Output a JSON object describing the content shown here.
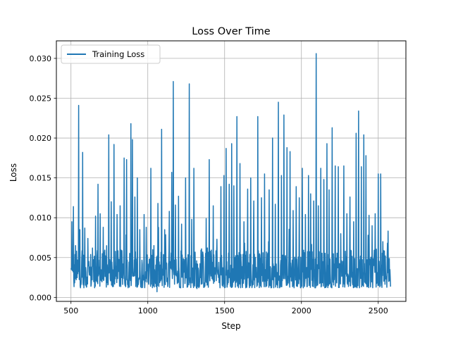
{
  "chart_data": {
    "type": "line",
    "title": "Loss Over Time",
    "xlabel": "Step",
    "ylabel": "Loss",
    "xlim": [
      405,
      2680
    ],
    "ylim": [
      -0.0005,
      0.0322
    ],
    "x_ticks": [
      500,
      1000,
      1500,
      2000,
      2500
    ],
    "x_tick_labels": [
      "500",
      "1000",
      "1500",
      "2000",
      "2500"
    ],
    "y_ticks": [
      0.0,
      0.005,
      0.01,
      0.015,
      0.02,
      0.025,
      0.03
    ],
    "y_tick_labels": [
      "0.000",
      "0.005",
      "0.010",
      "0.015",
      "0.020",
      "0.025",
      "0.030"
    ],
    "grid": true,
    "legend_position": "top-left",
    "series": [
      {
        "name": "Training Loss",
        "color": "#1f77b4",
        "x_range": [
          500,
          2580
        ],
        "baseline_range": [
          0.0012,
          0.006
        ],
        "peaks": [
          [
            505,
            0.0095
          ],
          [
            515,
            0.0114
          ],
          [
            530,
            0.0065
          ],
          [
            550,
            0.0241
          ],
          [
            558,
            0.0085
          ],
          [
            575,
            0.0182
          ],
          [
            590,
            0.0087
          ],
          [
            610,
            0.0074
          ],
          [
            640,
            0.0062
          ],
          [
            660,
            0.0102
          ],
          [
            675,
            0.0142
          ],
          [
            690,
            0.0105
          ],
          [
            710,
            0.0088
          ],
          [
            745,
            0.0204
          ],
          [
            762,
            0.012
          ],
          [
            780,
            0.0192
          ],
          [
            800,
            0.0104
          ],
          [
            820,
            0.0115
          ],
          [
            845,
            0.0175
          ],
          [
            862,
            0.0173
          ],
          [
            890,
            0.0218
          ],
          [
            900,
            0.0198
          ],
          [
            915,
            0.0126
          ],
          [
            932,
            0.015
          ],
          [
            948,
            0.0085
          ],
          [
            975,
            0.0104
          ],
          [
            990,
            0.0088
          ],
          [
            1020,
            0.0162
          ],
          [
            1040,
            0.0065
          ],
          [
            1065,
            0.0118
          ],
          [
            1090,
            0.0211
          ],
          [
            1110,
            0.0085
          ],
          [
            1140,
            0.0108
          ],
          [
            1155,
            0.0157
          ],
          [
            1165,
            0.0271
          ],
          [
            1180,
            0.0116
          ],
          [
            1200,
            0.0127
          ],
          [
            1220,
            0.0092
          ],
          [
            1245,
            0.015
          ],
          [
            1270,
            0.0268
          ],
          [
            1285,
            0.0098
          ],
          [
            1300,
            0.0162
          ],
          [
            1320,
            0.0072
          ],
          [
            1350,
            0.0061
          ],
          [
            1380,
            0.0099
          ],
          [
            1400,
            0.0173
          ],
          [
            1425,
            0.0115
          ],
          [
            1450,
            0.0073
          ],
          [
            1475,
            0.0139
          ],
          [
            1495,
            0.0153
          ],
          [
            1510,
            0.0187
          ],
          [
            1530,
            0.0142
          ],
          [
            1545,
            0.0193
          ],
          [
            1560,
            0.014
          ],
          [
            1580,
            0.0227
          ],
          [
            1600,
            0.0168
          ],
          [
            1625,
            0.0095
          ],
          [
            1650,
            0.0136
          ],
          [
            1670,
            0.015
          ],
          [
            1690,
            0.0121
          ],
          [
            1715,
            0.0227
          ],
          [
            1740,
            0.0125
          ],
          [
            1760,
            0.0155
          ],
          [
            1790,
            0.0135
          ],
          [
            1812,
            0.02
          ],
          [
            1830,
            0.0117
          ],
          [
            1850,
            0.0245
          ],
          [
            1870,
            0.0153
          ],
          [
            1885,
            0.0229
          ],
          [
            1905,
            0.0188
          ],
          [
            1925,
            0.0183
          ],
          [
            1945,
            0.0109
          ],
          [
            1965,
            0.0139
          ],
          [
            1985,
            0.0125
          ],
          [
            2005,
            0.0162
          ],
          [
            2025,
            0.0104
          ],
          [
            2045,
            0.0153
          ],
          [
            2060,
            0.013
          ],
          [
            2080,
            0.0121
          ],
          [
            2095,
            0.0306
          ],
          [
            2110,
            0.0115
          ],
          [
            2125,
            0.0162
          ],
          [
            2145,
            0.0148
          ],
          [
            2165,
            0.0193
          ],
          [
            2180,
            0.0135
          ],
          [
            2200,
            0.0213
          ],
          [
            2220,
            0.0165
          ],
          [
            2240,
            0.0164
          ],
          [
            2255,
            0.008
          ],
          [
            2275,
            0.0165
          ],
          [
            2295,
            0.0105
          ],
          [
            2315,
            0.0126
          ],
          [
            2340,
            0.0095
          ],
          [
            2355,
            0.0206
          ],
          [
            2372,
            0.0234
          ],
          [
            2390,
            0.0164
          ],
          [
            2405,
            0.0204
          ],
          [
            2420,
            0.0178
          ],
          [
            2440,
            0.0103
          ],
          [
            2460,
            0.009
          ],
          [
            2480,
            0.0105
          ],
          [
            2500,
            0.0155
          ],
          [
            2515,
            0.0155
          ],
          [
            2530,
            0.007
          ],
          [
            2545,
            0.0052
          ],
          [
            2560,
            0.0068
          ],
          [
            2575,
            0.0035
          ]
        ],
        "dips": [
          [
            1060,
            0.0007
          ],
          [
            1320,
            0.0011
          ]
        ]
      }
    ]
  }
}
